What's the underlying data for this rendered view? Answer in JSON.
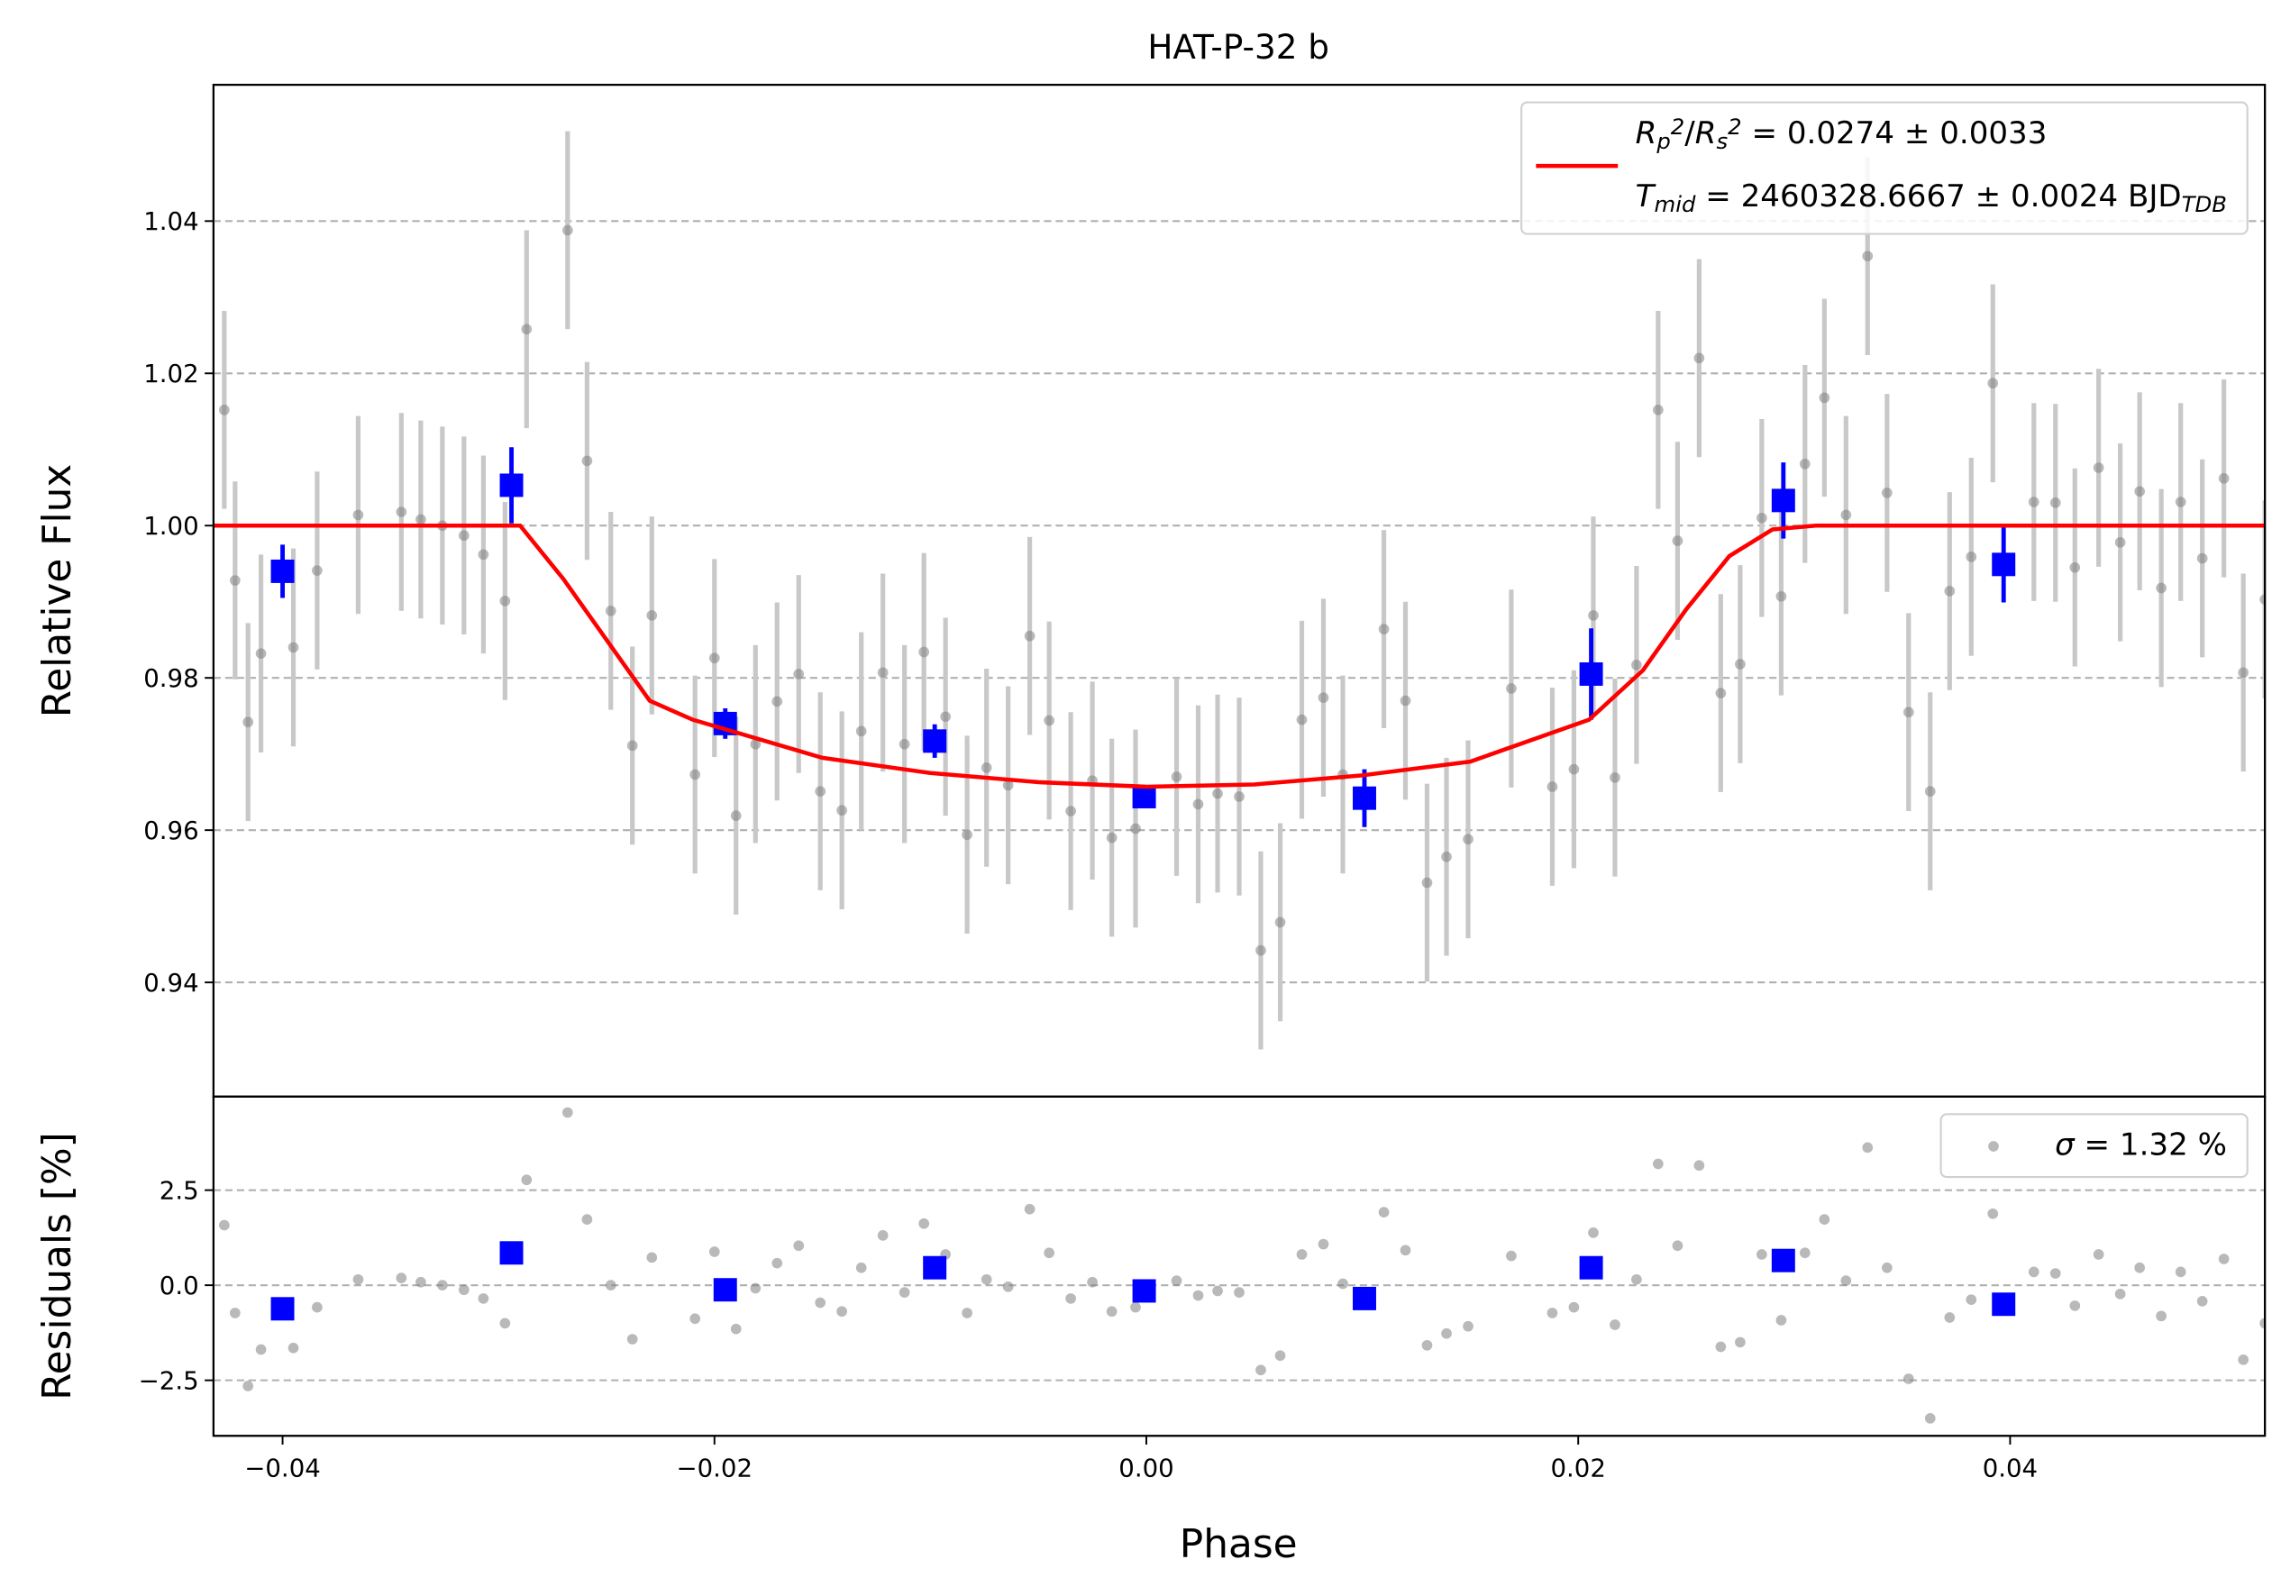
{
  "chart_data": [
    {
      "type": "scatter",
      "title": "HAT-P-32 b",
      "ylabel": "Relative Flux",
      "xlim": [
        -0.0432,
        0.0518
      ],
      "ylim": [
        0.925,
        1.0579
      ],
      "yticks": [
        0.94,
        0.96,
        0.98,
        {
          "value": 1.0,
          "label": "1.00"
        },
        1.02,
        1.04
      ],
      "grid": true,
      "legend": "upper right",
      "series": [
        {
          "marker": "o",
          "color": "#808080",
          "error": 0.013,
          "x": [
            -0.0427,
            -0.0422,
            -0.0416,
            -0.041,
            -0.0395,
            -0.0384,
            -0.0365,
            -0.0345,
            -0.0336,
            -0.0326,
            -0.0316,
            -0.0307,
            -0.0297,
            -0.0287,
            -0.0268,
            -0.0259,
            -0.0248,
            -0.0238,
            -0.0229,
            -0.0209,
            -0.02,
            -0.019,
            -0.0181,
            -0.0171,
            -0.0161,
            -0.0151,
            -0.0141,
            -0.0132,
            -0.0122,
            -0.0112,
            -0.0103,
            -0.0093,
            -0.0083,
            -0.0074,
            -0.0064,
            -0.0054,
            -0.0045,
            -0.0035,
            -0.0025,
            -0.0016,
            -0.0005,
            0.0014,
            0.0024,
            0.0033,
            0.0043,
            0.0053,
            0.0062,
            0.0072,
            0.0082,
            0.0091,
            0.011,
            0.012,
            0.013,
            0.0139,
            0.0149,
            0.0169,
            0.0188,
            0.0198,
            0.0207,
            0.0217,
            0.0227,
            0.0237,
            0.0246,
            0.0256,
            0.0266,
            0.0275,
            0.0285,
            0.0294,
            0.0305,
            0.0314,
            0.0324,
            0.0334,
            0.0343,
            0.0353,
            0.0363,
            0.0372,
            0.0382,
            0.0392,
            0.0411,
            0.0421,
            0.043,
            0.0441,
            0.0451,
            0.046,
            0.047,
            0.0479,
            0.0489,
            0.0499,
            0.0508,
            0.0518
          ],
          "y": [
            1.0152,
            0.9928,
            0.9742,
            0.9832,
            0.984,
            0.9941,
            1.0014,
            1.0018,
            1.0008,
            1.0,
            0.9987,
            0.9962,
            0.9901,
            1.0258,
            1.0388,
            1.0085,
            0.9888,
            0.9711,
            0.9882,
            0.9673,
            0.9826,
            0.9619,
            0.9713,
            0.9769,
            0.9805,
            0.9651,
            0.9626,
            0.973,
            0.9807,
            0.9713,
            0.9834,
            0.9749,
            0.9594,
            0.9682,
            0.9659,
            0.9855,
            0.9744,
            0.9625,
            0.9665,
            0.959,
            0.9602,
            0.967,
            0.9634,
            0.9648,
            0.9644,
            0.9442,
            0.9479,
            0.9745,
            0.9774,
            0.9673,
            0.9864,
            0.977,
            0.9531,
            0.9565,
            0.9588,
            0.9786,
            0.9657,
            0.968,
            0.9882,
            0.9669,
            0.9817,
            1.0152,
            0.998,
            1.022,
            0.978,
            0.9818,
            1.001,
            0.9907,
            1.0081,
            1.0168,
            1.0014,
            1.0354,
            1.0043,
            0.9755,
            0.9651,
            0.9914,
            0.9959,
            1.0187,
            1.0031,
            1.003,
            0.9945,
            1.0076,
            0.9978,
            1.0045,
            0.9918,
            1.0031,
            0.9957,
            1.0062,
            0.9807,
            0.9903
          ]
        },
        {
          "marker": "s",
          "color": "#0000ff",
          "x": [
            -0.04,
            -0.0294,
            -0.0195,
            -0.0098,
            -0.0001,
            0.0101,
            0.0206,
            0.0295,
            0.0397
          ],
          "y": [
            0.994,
            1.0053,
            0.974,
            0.9717,
            0.9644,
            0.9642,
            0.9805,
            1.0033,
            0.9949
          ],
          "errors": [
            0.0035,
            0.005,
            0.002,
            0.0022,
            0.001,
            0.0038,
            0.006,
            0.005,
            0.005
          ]
        },
        {
          "type": "line",
          "color": "#ff0000",
          "label": [
            [
              {
                "text": "R",
                "style": "italic"
              },
              {
                "text": "p",
                "style": "sub"
              },
              {
                "text": "2",
                "style": "sup"
              },
              {
                "text": "/",
                "style": "normal"
              },
              {
                "text": "R",
                "style": "italic"
              },
              {
                "text": "s",
                "style": "sub"
              },
              {
                "text": "2",
                "style": "sup"
              },
              {
                "text": " = 0.0274 ± 0.0033",
                "style": "normal"
              }
            ],
            [
              {
                "text": "T",
                "style": "italic"
              },
              {
                "text": "mid",
                "style": "sub"
              },
              {
                "text": " = 2460328.6667 ± 0.0024 BJD",
                "style": "normal"
              },
              {
                "text": "TDB",
                "style": "sub"
              }
            ]
          ],
          "x": [
            -0.0432,
            -0.029,
            -0.027,
            -0.025,
            -0.023,
            -0.021,
            -0.015,
            -0.01,
            -0.005,
            0.0,
            0.005,
            0.01,
            0.015,
            0.0205,
            0.023,
            0.025,
            0.027,
            0.029,
            0.031,
            0.0518
          ],
          "y": [
            1.0,
            1.0,
            0.993,
            0.985,
            0.977,
            0.9745,
            0.9695,
            0.9675,
            0.9663,
            0.9657,
            0.966,
            0.9672,
            0.969,
            0.9745,
            0.981,
            0.989,
            0.996,
            0.9995,
            1.0,
            1.0
          ]
        }
      ]
    },
    {
      "type": "scatter",
      "xlabel": "Phase",
      "ylabel": "Residuals [%]",
      "xlim": [
        -0.0432,
        0.0518
      ],
      "xticks": [
        {
          "value": -0.04,
          "label": "−0.04"
        },
        {
          "value": -0.02,
          "label": "−0.02"
        },
        {
          "value": 0.0,
          "label": "0.00"
        },
        0.02,
        0.04
      ],
      "ylim": [
        -3.96,
        4.96
      ],
      "yticks": [
        {
          "value": -2.5,
          "label": "−2.5"
        },
        {
          "value": 0,
          "label": "0.0"
        },
        2.5
      ],
      "grid": true,
      "legend": "upper right",
      "series": [
        {
          "marker": "o",
          "color": "#808080",
          "label": [
            [
              {
                "text": "σ",
                "style": "italic"
              },
              {
                "text": " = 1.32 %",
                "style": "normal"
              }
            ]
          ],
          "x": [
            -0.0427,
            -0.0422,
            -0.0416,
            -0.041,
            -0.0395,
            -0.0384,
            -0.0365,
            -0.0345,
            -0.0336,
            -0.0326,
            -0.0316,
            -0.0307,
            -0.0297,
            -0.0287,
            -0.0268,
            -0.0259,
            -0.0248,
            -0.0238,
            -0.0229,
            -0.0209,
            -0.02,
            -0.019,
            -0.0181,
            -0.0171,
            -0.0161,
            -0.0151,
            -0.0141,
            -0.0132,
            -0.0122,
            -0.0112,
            -0.0103,
            -0.0093,
            -0.0083,
            -0.0074,
            -0.0064,
            -0.0054,
            -0.0045,
            -0.0035,
            -0.0025,
            -0.0016,
            -0.0005,
            0.0014,
            0.0024,
            0.0033,
            0.0043,
            0.0053,
            0.0062,
            0.0072,
            0.0082,
            0.0091,
            0.011,
            0.012,
            0.013,
            0.0139,
            0.0149,
            0.0169,
            0.0188,
            0.0198,
            0.0207,
            0.0217,
            0.0227,
            0.0237,
            0.0246,
            0.0256,
            0.0266,
            0.0275,
            0.0285,
            0.0294,
            0.0305,
            0.0314,
            0.0324,
            0.0334,
            0.0343,
            0.0353,
            0.0363,
            0.0372,
            0.0382,
            0.0392,
            0.0411,
            0.0421,
            0.043,
            0.0441,
            0.0451,
            0.046,
            0.047,
            0.0479,
            0.0489,
            0.0499,
            0.0508,
            0.0518
          ],
          "y": [
            1.58,
            -0.73,
            -2.65,
            -1.69,
            -1.65,
            -0.58,
            0.15,
            0.19,
            0.08,
            0.0,
            -0.12,
            -0.35,
            -1.0,
            2.77,
            4.54,
            1.73,
            0.0,
            -1.42,
            0.73,
            -0.88,
            0.88,
            -1.15,
            -0.08,
            0.58,
            1.04,
            -0.46,
            -0.69,
            0.46,
            1.31,
            -0.19,
            1.62,
            0.81,
            -0.73,
            0.15,
            -0.04,
            2.0,
            0.85,
            -0.35,
            0.08,
            -0.69,
            -0.58,
            0.12,
            -0.27,
            -0.15,
            -0.19,
            -2.23,
            -1.85,
            0.81,
            1.08,
            0.04,
            1.92,
            0.92,
            -1.58,
            -1.27,
            -1.08,
            0.77,
            -0.73,
            -0.58,
            1.38,
            -1.04,
            0.15,
            3.19,
            1.04,
            3.15,
            -1.62,
            -1.5,
            0.81,
            -0.92,
            0.85,
            1.73,
            0.12,
            3.62,
            0.46,
            -2.46,
            -3.5,
            -0.85,
            -0.38,
            1.88,
            0.35,
            0.31,
            -0.54,
            0.81,
            -0.23,
            0.46,
            -0.81,
            0.35,
            -0.42,
            0.69,
            -1.96,
            -1.0
          ]
        },
        {
          "marker": "s",
          "color": "#0000ff",
          "x": [
            -0.04,
            -0.0294,
            -0.0195,
            -0.0098,
            -0.0001,
            0.0101,
            0.0206,
            0.0295,
            0.0397
          ],
          "y": [
            -0.62,
            0.85,
            -0.12,
            0.46,
            -0.15,
            -0.35,
            0.46,
            0.65,
            -0.5
          ]
        }
      ]
    }
  ]
}
